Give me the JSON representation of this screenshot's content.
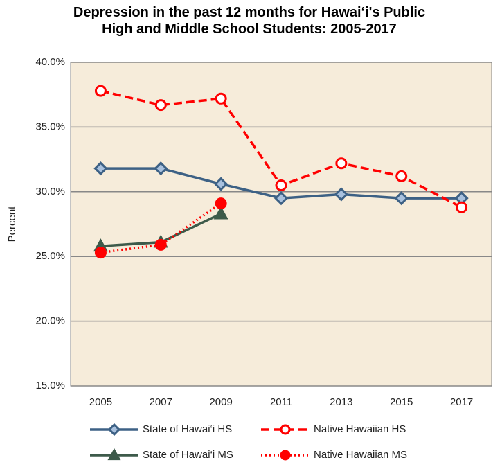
{
  "chart_data": {
    "type": "line",
    "title": "Depression in the past 12 months for Hawai‘i's Public High and Middle School Students: 2005-2017",
    "y_label": "Percent",
    "categories": [
      "2005",
      "2007",
      "2009",
      "2011",
      "2013",
      "2015",
      "2017"
    ],
    "series": [
      {
        "name": "State of Hawai‘i HS",
        "color": "#3d6185",
        "marker": "diamond",
        "marker_fill": "#a9c1de",
        "dash": "solid",
        "values": [
          31.8,
          31.8,
          30.6,
          29.5,
          29.8,
          29.5,
          29.5
        ]
      },
      {
        "name": "Native Hawaiian HS",
        "color": "#ff0000",
        "marker": "circle",
        "marker_fill": "#ffffff",
        "dash": "dashed",
        "values": [
          37.8,
          36.7,
          37.2,
          30.5,
          32.2,
          31.2,
          28.8
        ]
      },
      {
        "name": "State of Hawai‘i MS",
        "color": "#3d5a4a",
        "marker": "triangle",
        "marker_fill": "#3d5a4a",
        "dash": "solid",
        "values": [
          25.8,
          26.1,
          28.3,
          null,
          null,
          null,
          null
        ]
      },
      {
        "name": "Native Hawaiian MS",
        "color": "#ff0000",
        "marker": "circle",
        "marker_fill": "#ff0000",
        "dash": "dotted",
        "values": [
          25.3,
          25.9,
          29.1,
          null,
          null,
          null,
          null
        ]
      }
    ],
    "ylim": [
      15,
      40
    ],
    "yticks": [
      {
        "value": 15,
        "label": "15.0%"
      },
      {
        "value": 20,
        "label": "20.0%"
      },
      {
        "value": 25,
        "label": "25.0%"
      },
      {
        "value": 30,
        "label": "30.0%"
      },
      {
        "value": 35,
        "label": "35.0%"
      },
      {
        "value": 40,
        "label": "40.0%"
      }
    ],
    "grid": true,
    "plot_background": "#f6ecda"
  }
}
